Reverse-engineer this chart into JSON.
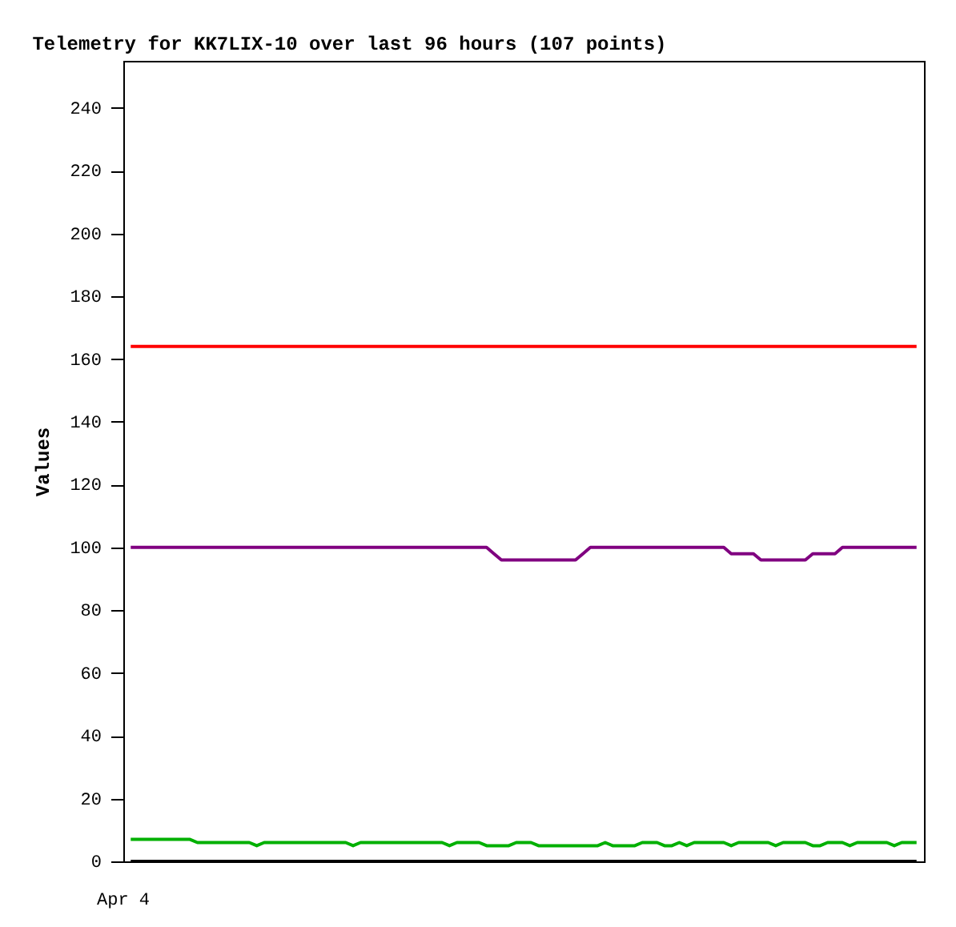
{
  "chart_data": {
    "type": "line",
    "title": "Telemetry for KK7LIX-10 over last 96 hours (107 points)",
    "ylabel": "Values",
    "annotations": [
      "Apr 4"
    ],
    "categories": [
      null,
      null,
      null,
      null,
      null,
      null,
      null,
      null,
      null,
      null,
      null,
      null,
      null,
      null,
      null,
      null,
      null,
      null,
      null,
      null,
      null,
      null,
      null,
      null,
      null,
      null,
      null,
      null,
      null,
      null,
      null,
      null,
      null,
      null,
      null,
      null,
      null,
      null,
      null,
      null,
      null,
      null,
      null,
      null,
      null,
      null,
      null,
      null,
      null,
      null,
      null,
      null,
      null,
      null,
      null,
      null,
      null,
      null,
      null,
      null,
      null,
      null,
      null,
      null,
      null,
      null,
      null,
      null,
      null,
      null,
      null,
      null,
      null,
      null,
      null,
      null,
      null,
      null,
      null,
      null,
      null,
      null,
      null,
      null,
      null,
      null,
      null,
      null,
      null,
      null,
      null,
      null,
      null,
      null,
      null,
      null,
      null,
      null,
      null,
      null,
      null,
      null,
      null,
      null,
      null,
      null,
      null
    ],
    "ylim": [
      0,
      255
    ],
    "yticks": [
      0,
      20,
      40,
      60,
      80,
      100,
      120,
      140,
      160,
      180,
      200,
      220,
      240
    ],
    "series": [
      {
        "color": "#ff0000",
        "values": [
          164,
          164,
          164,
          164,
          164,
          164,
          164,
          164,
          164,
          164,
          164,
          164,
          164,
          164,
          164,
          164,
          164,
          164,
          164,
          164,
          164,
          164,
          164,
          164,
          164,
          164,
          164,
          164,
          164,
          164,
          164,
          164,
          164,
          164,
          164,
          164,
          164,
          164,
          164,
          164,
          164,
          164,
          164,
          164,
          164,
          164,
          164,
          164,
          164,
          164,
          164,
          164,
          164,
          164,
          164,
          164,
          164,
          164,
          164,
          164,
          164,
          164,
          164,
          164,
          164,
          164,
          164,
          164,
          164,
          164,
          164,
          164,
          164,
          164,
          164,
          164,
          164,
          164,
          164,
          164,
          164,
          164,
          164,
          164,
          164,
          164,
          164,
          164,
          164,
          164,
          164,
          164,
          164,
          164,
          164,
          164,
          164,
          164,
          164,
          164,
          164,
          164,
          164,
          164,
          164,
          164,
          164
        ]
      },
      {
        "color": "#800080",
        "values": [
          100,
          100,
          100,
          100,
          100,
          100,
          100,
          100,
          100,
          100,
          100,
          100,
          100,
          100,
          100,
          100,
          100,
          100,
          100,
          100,
          100,
          100,
          100,
          100,
          100,
          100,
          100,
          100,
          100,
          100,
          100,
          100,
          100,
          100,
          100,
          100,
          100,
          100,
          100,
          100,
          100,
          100,
          100,
          100,
          100,
          100,
          100,
          100,
          100,
          98,
          96,
          96,
          96,
          96,
          96,
          96,
          96,
          96,
          96,
          96,
          96,
          98,
          100,
          100,
          100,
          100,
          100,
          100,
          100,
          100,
          100,
          100,
          100,
          100,
          100,
          100,
          100,
          100,
          100,
          100,
          100,
          98,
          98,
          98,
          98,
          96,
          96,
          96,
          96,
          96,
          96,
          96,
          98,
          98,
          98,
          98,
          100,
          100,
          100,
          100,
          100,
          100,
          100,
          100,
          100,
          100,
          100
        ]
      },
      {
        "color": "#00b000",
        "values": [
          7,
          7,
          7,
          7,
          7,
          7,
          7,
          7,
          7,
          6,
          6,
          6,
          6,
          6,
          6,
          6,
          6,
          5,
          6,
          6,
          6,
          6,
          6,
          6,
          6,
          6,
          6,
          6,
          6,
          6,
          5,
          6,
          6,
          6,
          6,
          6,
          6,
          6,
          6,
          6,
          6,
          6,
          6,
          5,
          6,
          6,
          6,
          6,
          5,
          5,
          5,
          5,
          6,
          6,
          6,
          5,
          5,
          5,
          5,
          5,
          5,
          5,
          5,
          5,
          6,
          5,
          5,
          5,
          5,
          6,
          6,
          6,
          5,
          5,
          6,
          5,
          6,
          6,
          6,
          6,
          6,
          5,
          6,
          6,
          6,
          6,
          6,
          5,
          6,
          6,
          6,
          6,
          5,
          5,
          6,
          6,
          6,
          5,
          6,
          6,
          6,
          6,
          6,
          5,
          6,
          6,
          6
        ]
      },
      {
        "color": "#000000",
        "values": [
          0,
          0,
          0,
          0,
          0,
          0,
          0,
          0,
          0,
          0,
          0,
          0,
          0,
          0,
          0,
          0,
          0,
          0,
          0,
          0,
          0,
          0,
          0,
          0,
          0,
          0,
          0,
          0,
          0,
          0,
          0,
          0,
          0,
          0,
          0,
          0,
          0,
          0,
          0,
          0,
          0,
          0,
          0,
          0,
          0,
          0,
          0,
          0,
          0,
          0,
          0,
          0,
          0,
          0,
          0,
          0,
          0,
          0,
          0,
          0,
          0,
          0,
          0,
          0,
          0,
          0,
          0,
          0,
          0,
          0,
          0,
          0,
          0,
          0,
          0,
          0,
          0,
          0,
          0,
          0,
          0,
          0,
          0,
          0,
          0,
          0,
          0,
          0,
          0,
          0,
          0,
          0,
          0,
          0,
          0,
          0,
          0,
          0,
          0,
          0,
          0,
          0,
          0,
          0,
          0,
          0,
          0
        ]
      }
    ]
  }
}
